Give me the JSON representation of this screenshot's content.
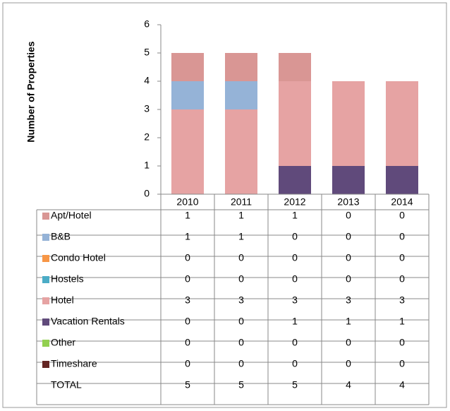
{
  "chart_data": {
    "type": "bar",
    "stacked": true,
    "y_label": "Number of Properties",
    "categories": [
      "2010",
      "2011",
      "2012",
      "2013",
      "2014"
    ],
    "series": [
      {
        "name": "Apt/Hotel",
        "color": "#d99694",
        "values": [
          1,
          1,
          1,
          0,
          0
        ]
      },
      {
        "name": "B&B",
        "color": "#95b3d7",
        "values": [
          1,
          1,
          0,
          0,
          0
        ]
      },
      {
        "name": "Condo Hotel",
        "color": "#f79646",
        "values": [
          0,
          0,
          0,
          0,
          0
        ]
      },
      {
        "name": "Hostels",
        "color": "#4bacc6",
        "values": [
          0,
          0,
          0,
          0,
          0
        ]
      },
      {
        "name": "Hotel",
        "color": "#e6a3a3",
        "values": [
          3,
          3,
          3,
          3,
          3
        ]
      },
      {
        "name": "Vacation Rentals",
        "color": "#604a7b",
        "values": [
          0,
          0,
          1,
          1,
          1
        ]
      },
      {
        "name": "Other",
        "color": "#92d050",
        "values": [
          0,
          0,
          0,
          0,
          0
        ]
      },
      {
        "name": "Timeshare",
        "color": "#632523",
        "values": [
          0,
          0,
          0,
          0,
          0
        ]
      }
    ],
    "total_label": "TOTAL",
    "totals": [
      5,
      5,
      5,
      4,
      4
    ],
    "ylim": [
      0,
      6
    ],
    "yticks": [
      0,
      1,
      2,
      3,
      4,
      5,
      6
    ]
  }
}
